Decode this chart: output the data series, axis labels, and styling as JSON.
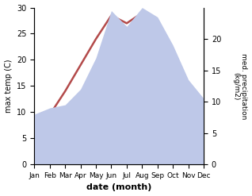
{
  "months": [
    "Jan",
    "Feb",
    "Mar",
    "Apr",
    "May",
    "Jun",
    "Jul",
    "Aug",
    "Sep",
    "Oct",
    "Nov",
    "Dec"
  ],
  "temp": [
    5.5,
    9.5,
    14.0,
    19.0,
    24.0,
    28.5,
    27.0,
    29.0,
    22.5,
    14.0,
    8.5,
    6.5
  ],
  "precip": [
    8.0,
    9.0,
    9.5,
    12.0,
    17.0,
    24.5,
    22.0,
    25.0,
    23.5,
    19.0,
    13.5,
    10.5
  ],
  "temp_color": "#b34a4a",
  "precip_fill_color": "#bec8e8",
  "temp_ylim": [
    0,
    30
  ],
  "precip_ylim": [
    0,
    25
  ],
  "precip_yticks": [
    0,
    5,
    10,
    15,
    20
  ],
  "temp_yticks": [
    0,
    5,
    10,
    15,
    20,
    25,
    30
  ],
  "xlabel": "date (month)",
  "ylabel_left": "max temp (C)",
  "ylabel_right": "med. precipitation\n(kg/m2)",
  "bg_color": "#ffffff"
}
